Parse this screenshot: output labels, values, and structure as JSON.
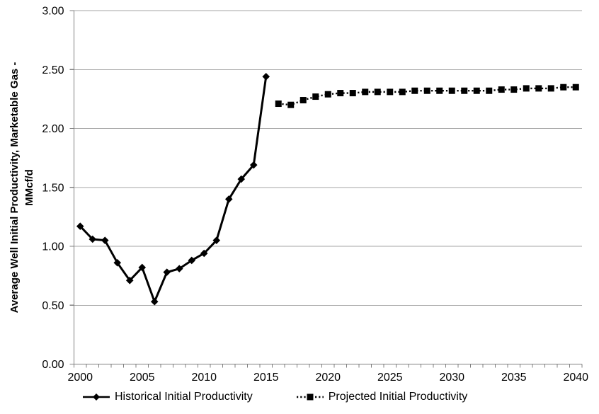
{
  "chart": {
    "y_axis_title_line1": "Average Well Initial Productivity, Marketable Gas -",
    "y_axis_title_line2": "MMcf/d"
  },
  "legend": {
    "historical_label": "Historical Initial Productivity",
    "projected_label": "Projected Initial Productivity"
  },
  "chart_data": {
    "type": "line",
    "title": "",
    "xlabel": "",
    "ylabel": "Average Well Initial Productivity, Marketable Gas - MMcf/d",
    "ylim": [
      0.0,
      3.0
    ],
    "ytick_step": 0.5,
    "ytick_labels": [
      "0.00",
      "0.50",
      "1.00",
      "1.50",
      "2.00",
      "2.50",
      "3.00"
    ],
    "xlim": [
      2000,
      2040
    ],
    "xtick_labels": [
      "2000",
      "2005",
      "2010",
      "2015",
      "2020",
      "2025",
      "2030",
      "2035",
      "2040"
    ],
    "grid": "horizontal",
    "legend_position": "bottom",
    "colors": {
      "series": "#000000",
      "gridline": "#a6a6a6",
      "axis": "#808080",
      "text": "#000000",
      "background": "#ffffff"
    },
    "series": [
      {
        "name": "Historical Initial Productivity",
        "line_style": "solid",
        "marker": "diamond",
        "x": [
          2000,
          2001,
          2002,
          2003,
          2004,
          2005,
          2006,
          2007,
          2008,
          2009,
          2010,
          2011,
          2012,
          2013,
          2014,
          2015
        ],
        "values": [
          1.17,
          1.06,
          1.05,
          0.86,
          0.71,
          0.82,
          0.53,
          0.78,
          0.81,
          0.88,
          0.94,
          1.05,
          1.4,
          1.57,
          1.69,
          2.44
        ]
      },
      {
        "name": "Projected Initial Productivity",
        "line_style": "dotted",
        "marker": "square",
        "x": [
          2016,
          2017,
          2018,
          2019,
          2020,
          2021,
          2022,
          2023,
          2024,
          2025,
          2026,
          2027,
          2028,
          2029,
          2030,
          2031,
          2032,
          2033,
          2034,
          2035,
          2036,
          2037,
          2038,
          2039,
          2040
        ],
        "values": [
          2.21,
          2.2,
          2.24,
          2.27,
          2.29,
          2.3,
          2.3,
          2.31,
          2.31,
          2.31,
          2.31,
          2.32,
          2.32,
          2.32,
          2.32,
          2.32,
          2.32,
          2.32,
          2.33,
          2.33,
          2.34,
          2.34,
          2.34,
          2.35,
          2.35
        ]
      }
    ]
  }
}
